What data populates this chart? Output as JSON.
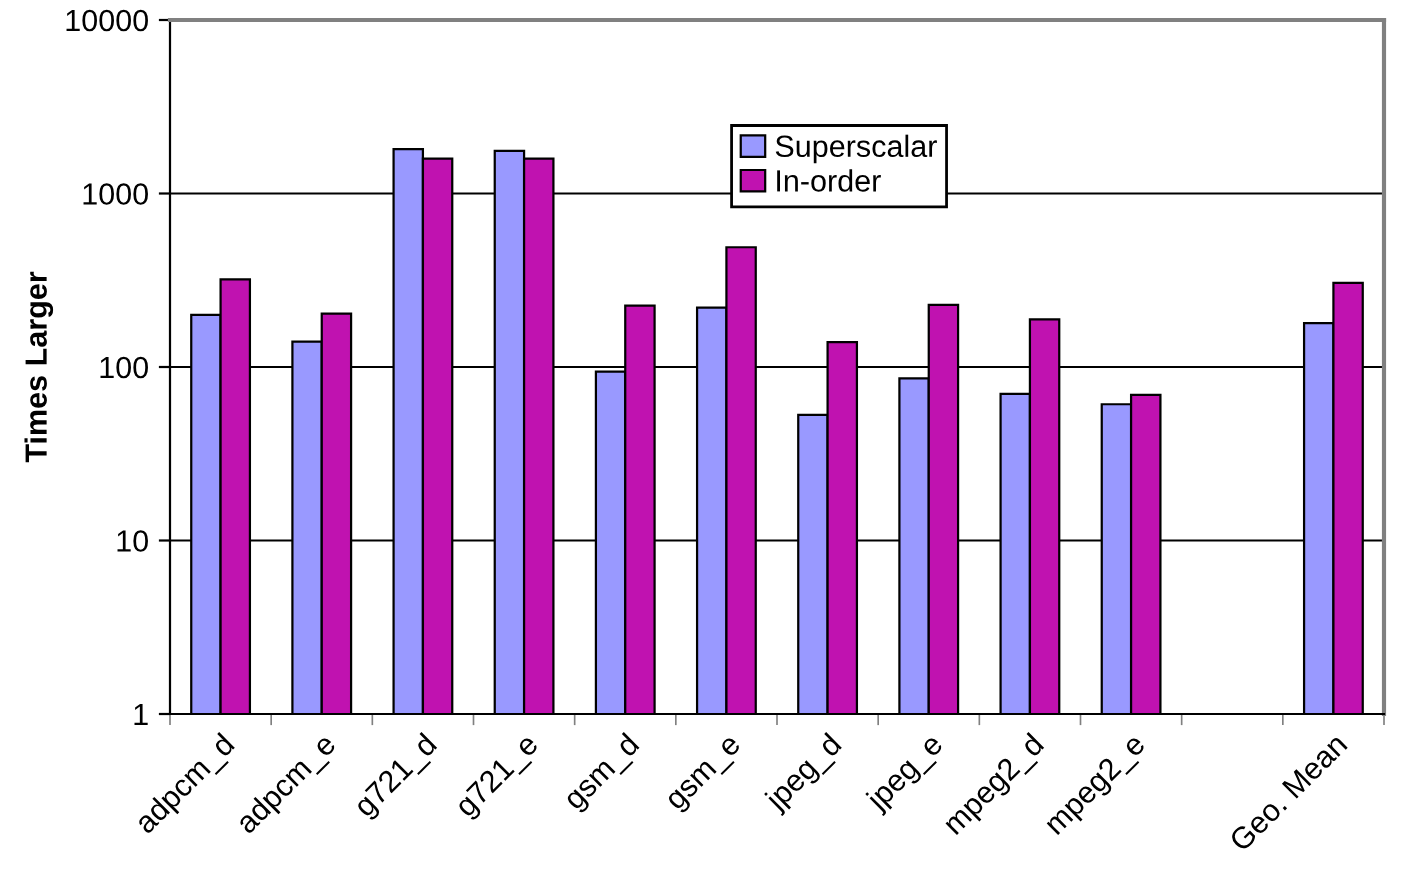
{
  "chart_data": {
    "type": "bar",
    "ylabel": "Times Larger",
    "categories": [
      "adpcm_d",
      "adpcm_e",
      "g721_d",
      "g721_e",
      "gsm_d",
      "gsm_e",
      "jpeg_d",
      "jpeg_e",
      "mpeg2_d",
      "mpeg2_e",
      null,
      "Geo. Mean"
    ],
    "series": [
      {
        "name": "Superscalar",
        "color": "#9999ff",
        "values": [
          200,
          140,
          1800,
          1760,
          94,
          220,
          53,
          86,
          70,
          61,
          null,
          179
        ]
      },
      {
        "name": "In-order",
        "color": "#c012b0",
        "values": [
          320,
          203,
          1590,
          1590,
          226,
          490,
          139,
          228,
          188,
          69,
          null,
          305
        ]
      }
    ],
    "log": "y",
    "ylim": [
      1,
      10000
    ],
    "yticks": [
      1,
      10,
      100,
      1000,
      10000
    ],
    "grid": "y",
    "legend": "top"
  }
}
